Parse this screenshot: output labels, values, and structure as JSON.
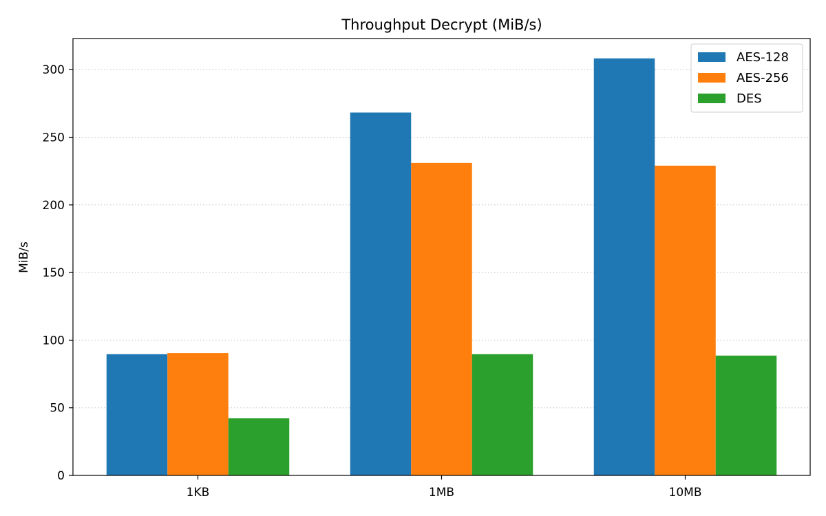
{
  "chart_data": {
    "type": "bar",
    "title": "Throughput Decrypt (MiB/s)",
    "xlabel": "",
    "ylabel": "MiB/s",
    "categories": [
      "1KB",
      "1MB",
      "10MB"
    ],
    "series": [
      {
        "name": "AES-128",
        "color": "#1f77b4",
        "values": [
          89.6,
          268.3,
          308.3
        ]
      },
      {
        "name": "AES-256",
        "color": "#ff7f0e",
        "values": [
          90.5,
          231.0,
          229.0
        ]
      },
      {
        "name": "DES",
        "color": "#2ca02c",
        "values": [
          42.2,
          89.6,
          88.6
        ]
      }
    ],
    "ylim": [
      0,
      323
    ],
    "yticks": [
      0,
      50,
      100,
      150,
      200,
      250,
      300
    ],
    "grid": "horizontal-dotted",
    "legend_position": "top-right"
  }
}
